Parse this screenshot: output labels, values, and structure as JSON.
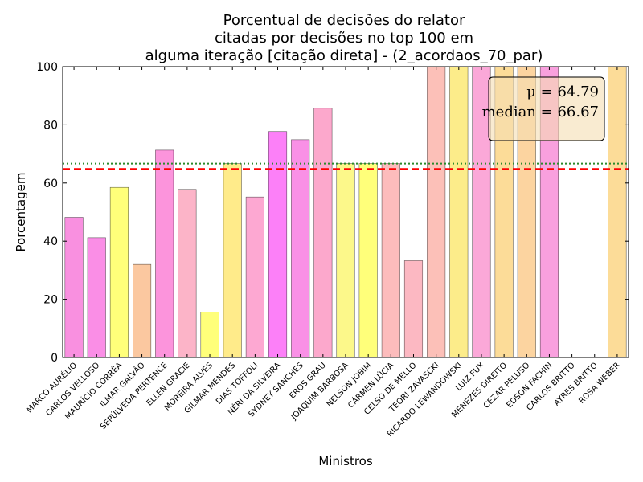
{
  "chart_data": {
    "type": "bar",
    "title": [
      "Porcentual de decisões do relator",
      "citadas por decisões no top 100 em",
      "alguma iteração [citação direta] - (2_acordaos_70_par)"
    ],
    "xlabel": "Ministros",
    "ylabel": "Porcentagem",
    "ylim": [
      0,
      100
    ],
    "yticks": [
      0,
      20,
      40,
      60,
      80,
      100
    ],
    "categories": [
      "MARCO AURÉLIO",
      "CARLOS VELLOSO",
      "MAURÍCIO CORRÊA",
      "ILMAR GALVÃO",
      "SEPÚLVEDA PERTENCE",
      "ELLEN GRACIE",
      "MOREIRA ALVES",
      "GILMAR MENDES",
      "DIAS TOFFOLI",
      "NÉRI DA SILVEIRA",
      "SYDNEY SANCHES",
      "EROS GRAU",
      "JOAQUIM BARBOSA",
      "NELSON JOBIM",
      "CÁRMEN LÚCIA",
      "CELSO DE MELLO",
      "TEORI ZAVASCKI",
      "RICARDO LEWANDOWSKI",
      "LUIZ FUX",
      "MENEZES DIREITO",
      "CEZAR PELUSO",
      "EDSON FACHIN",
      "CARLOS BRITTO",
      "AYRES BRITTO",
      "ROSA WEBER"
    ],
    "values": [
      48.2,
      41.2,
      58.5,
      32.0,
      71.3,
      57.8,
      15.6,
      66.7,
      55.2,
      77.7,
      74.9,
      85.7,
      66.7,
      66.7,
      66.7,
      33.3,
      100,
      100,
      100,
      100,
      100,
      100,
      0,
      0,
      100
    ],
    "colors": [
      "#f990e0",
      "#fa8ee6",
      "#ffff7a",
      "#fbc8a0",
      "#fc94dc",
      "#fcb4c8",
      "#ffff7a",
      "#ffeb8a",
      "#fda8d2",
      "#fc80f8",
      "#f990e6",
      "#fca8cc",
      "#fcf88a",
      "#ffff7a",
      "#fcbcbc",
      "#fcb8c2",
      "#fcc0b8",
      "#fcec8a",
      "#fba8d8",
      "#fcdc98",
      "#fcd4a0",
      "#f9a0de",
      "#ffffff",
      "#ffffff",
      "#fcdc98"
    ],
    "mean_line": {
      "value": 64.79,
      "color": "#ff0000",
      "style": "dashed"
    },
    "median_line": {
      "value": 66.67,
      "color": "#2c8a2c",
      "style": "dotted"
    },
    "stats_box": {
      "mean_text": "μ = 64.79",
      "median_text": "median = 66.67",
      "placement": "top-right",
      "fill": "#f5deb3"
    },
    "legend": "none",
    "grid": false
  }
}
